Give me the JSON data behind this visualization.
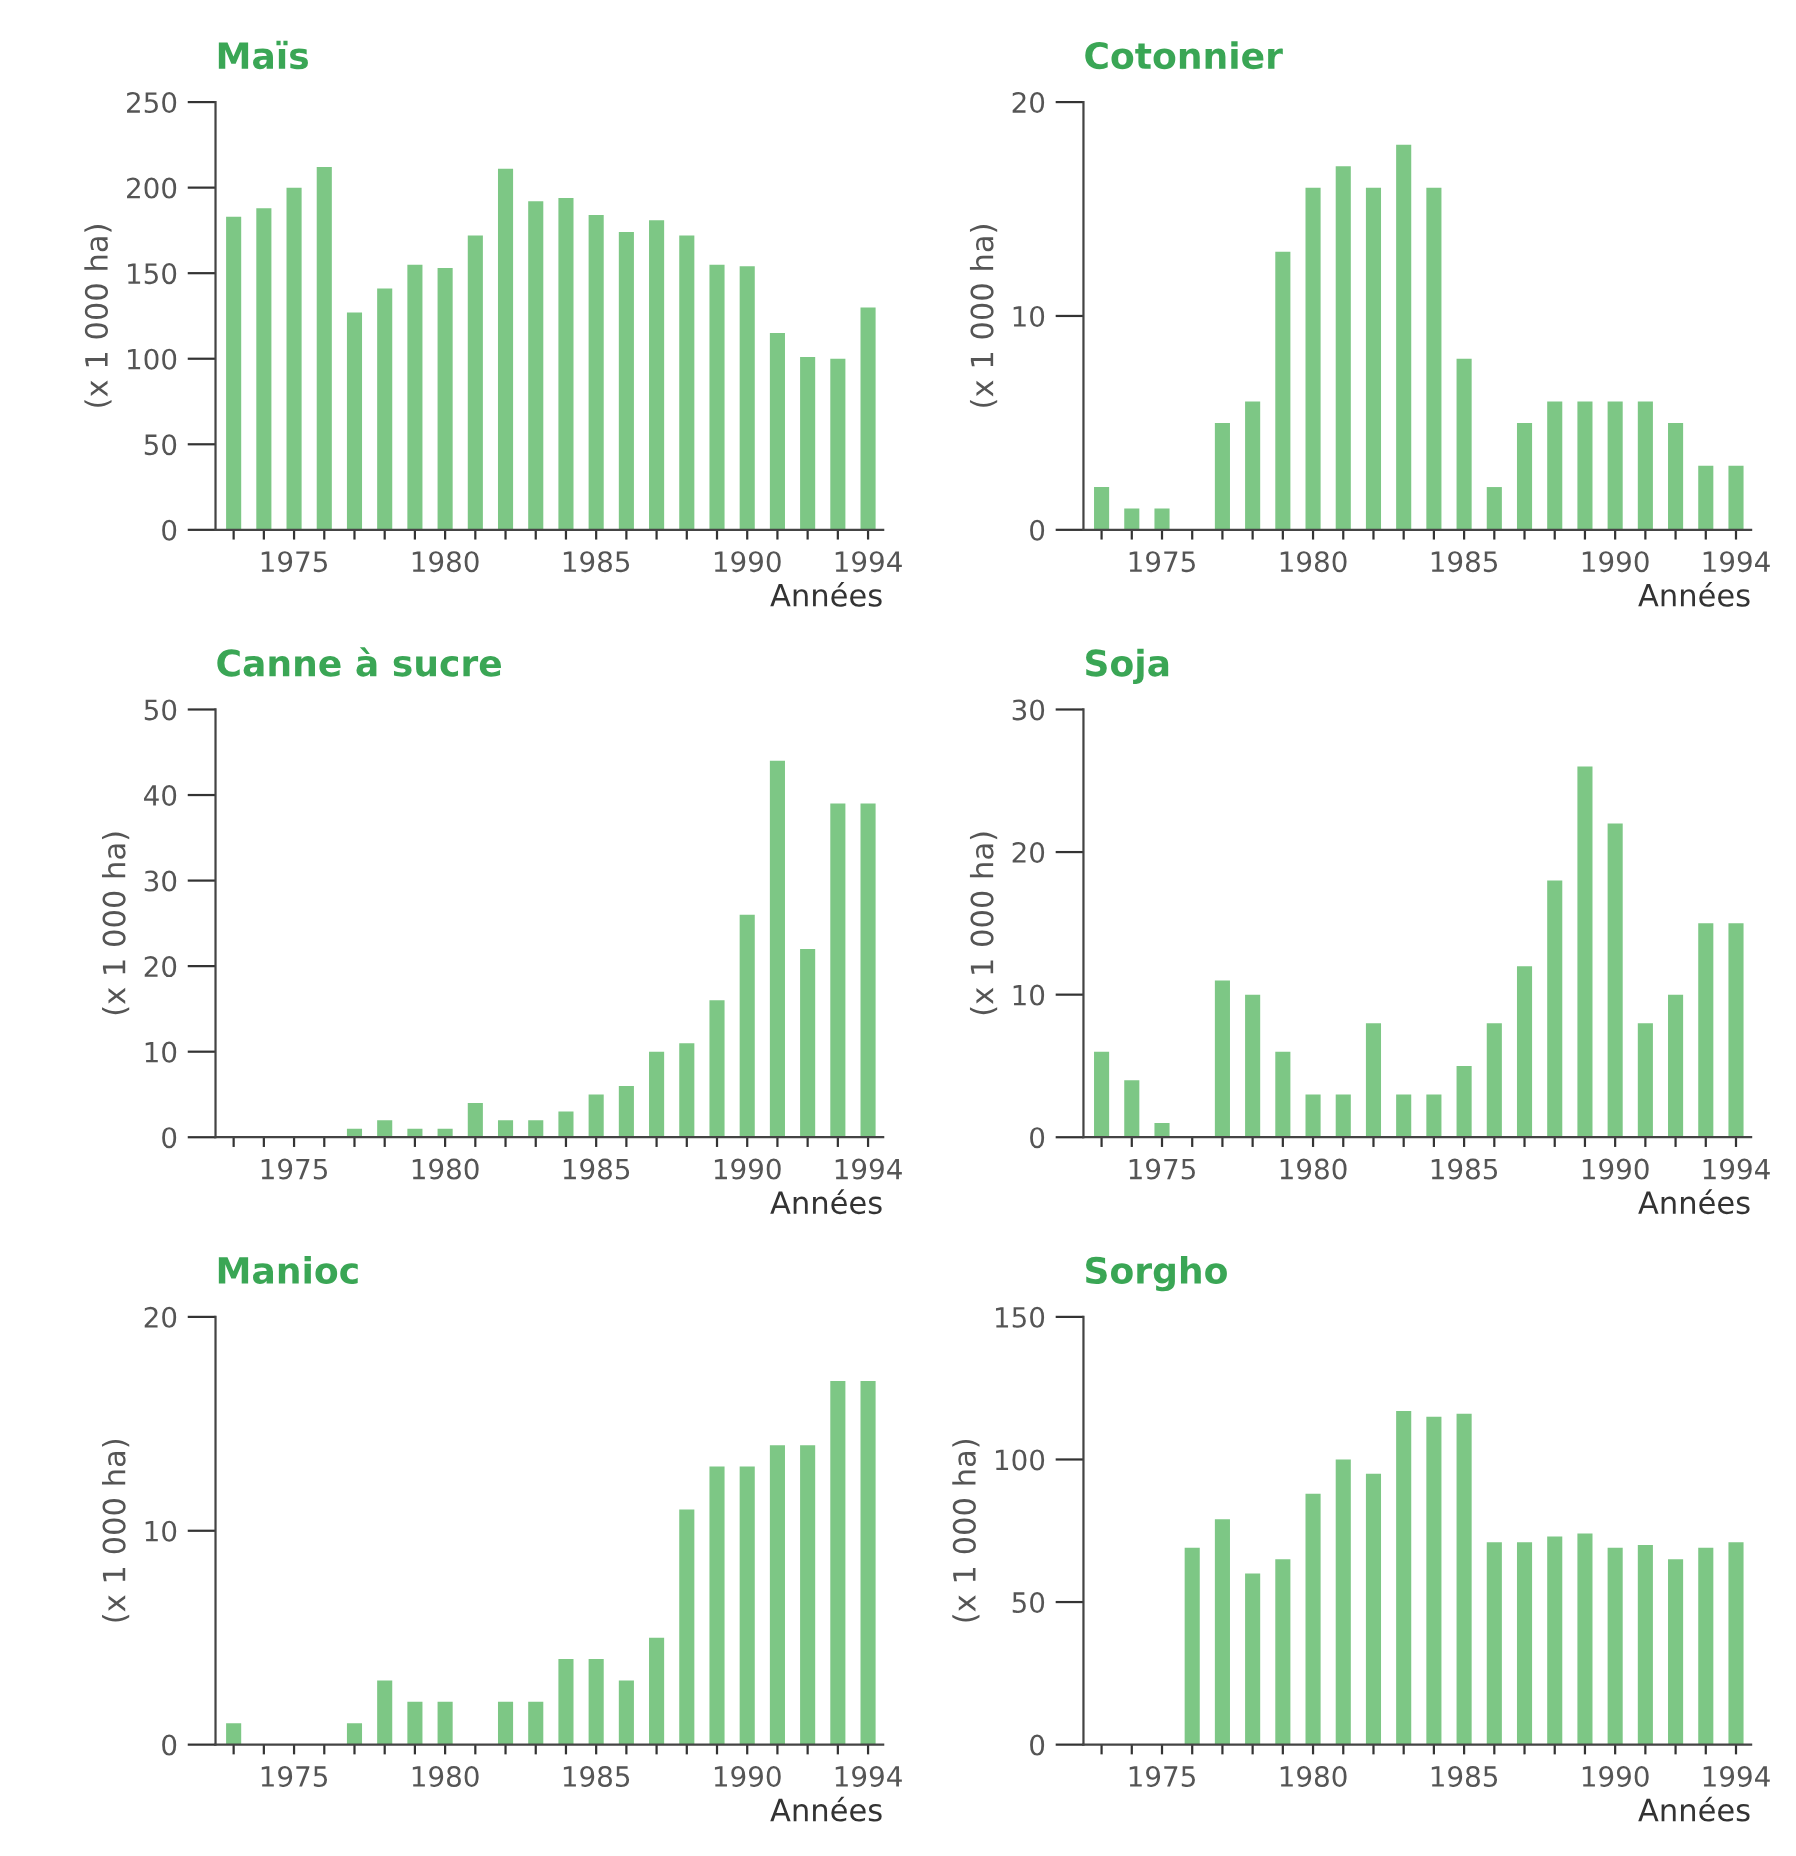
{
  "chart_data": [
    {
      "type": "bar",
      "title": "Maïs",
      "ylabel": "(x 1 000 ha)",
      "xlabel": "Années",
      "x": [
        1973,
        1974,
        1975,
        1976,
        1977,
        1978,
        1979,
        1980,
        1981,
        1982,
        1983,
        1984,
        1985,
        1986,
        1987,
        1988,
        1989,
        1990,
        1991,
        1992,
        1993,
        1994
      ],
      "color": "#7dc785",
      "values": [
        183,
        188,
        200,
        212,
        127,
        141,
        155,
        153,
        172,
        211,
        192,
        194,
        184,
        174,
        181,
        172,
        155,
        154,
        115,
        101,
        100,
        130
      ],
      "ylim": [
        0,
        250
      ],
      "yticks": [
        0,
        50,
        100,
        150,
        200,
        250
      ],
      "xlim": [
        1972.4,
        1994.5
      ],
      "xticks": [
        {
          "value": 1973,
          "label": null
        },
        {
          "value": 1974,
          "label": null
        },
        1975,
        {
          "value": 1976,
          "label": null
        },
        {
          "value": 1977,
          "label": null
        },
        {
          "value": 1978,
          "label": null
        },
        {
          "value": 1979,
          "label": null
        },
        1980,
        {
          "value": 1981,
          "label": null
        },
        {
          "value": 1982,
          "label": null
        },
        {
          "value": 1983,
          "label": null
        },
        {
          "value": 1984,
          "label": null
        },
        1985,
        {
          "value": 1986,
          "label": null
        },
        {
          "value": 1987,
          "label": null
        },
        {
          "value": 1988,
          "label": null
        },
        {
          "value": 1989,
          "label": null
        },
        1990,
        {
          "value": 1991,
          "label": null
        },
        {
          "value": 1992,
          "label": null
        },
        {
          "value": 1993,
          "label": null
        },
        1994
      ],
      "grid": false
    },
    {
      "type": "bar",
      "title": "Cotonnier",
      "ylabel": "(x 1 000 ha)",
      "xlabel": "Années",
      "x": [
        1973,
        1974,
        1975,
        1976,
        1977,
        1978,
        1979,
        1980,
        1981,
        1982,
        1983,
        1984,
        1985,
        1986,
        1987,
        1988,
        1989,
        1990,
        1991,
        1992,
        1993,
        1994
      ],
      "color": "#7dc785",
      "values": [
        2,
        1,
        1,
        0,
        5,
        6,
        13,
        16,
        17,
        16,
        18,
        16,
        8,
        2,
        5,
        6,
        6,
        6,
        6,
        5,
        3,
        3
      ],
      "ylim": [
        0,
        20
      ],
      "yticks": [
        0,
        10,
        20
      ],
      "xlim": [
        1972.4,
        1994.5
      ],
      "xticks": [
        {
          "value": 1973,
          "label": null
        },
        {
          "value": 1974,
          "label": null
        },
        1975,
        {
          "value": 1976,
          "label": null
        },
        {
          "value": 1977,
          "label": null
        },
        {
          "value": 1978,
          "label": null
        },
        {
          "value": 1979,
          "label": null
        },
        1980,
        {
          "value": 1981,
          "label": null
        },
        {
          "value": 1982,
          "label": null
        },
        {
          "value": 1983,
          "label": null
        },
        {
          "value": 1984,
          "label": null
        },
        1985,
        {
          "value": 1986,
          "label": null
        },
        {
          "value": 1987,
          "label": null
        },
        {
          "value": 1988,
          "label": null
        },
        {
          "value": 1989,
          "label": null
        },
        1990,
        {
          "value": 1991,
          "label": null
        },
        {
          "value": 1992,
          "label": null
        },
        {
          "value": 1993,
          "label": null
        },
        1994
      ],
      "grid": false
    },
    {
      "type": "bar",
      "title": "Canne à sucre",
      "ylabel": "(x 1 000 ha)",
      "xlabel": "Années",
      "x": [
        1973,
        1974,
        1975,
        1976,
        1977,
        1978,
        1979,
        1980,
        1981,
        1982,
        1983,
        1984,
        1985,
        1986,
        1987,
        1988,
        1989,
        1990,
        1991,
        1992,
        1993,
        1994
      ],
      "color": "#7dc785",
      "values": [
        0,
        0,
        0,
        0,
        1,
        2,
        1,
        1,
        4,
        2,
        2,
        3,
        5,
        6,
        10,
        11,
        16,
        26,
        44,
        22,
        39,
        39
      ],
      "ylim": [
        0,
        50
      ],
      "yticks": [
        0,
        10,
        20,
        30,
        40,
        50
      ],
      "xlim": [
        1972.4,
        1994.5
      ],
      "xticks": [
        {
          "value": 1973,
          "label": null
        },
        {
          "value": 1974,
          "label": null
        },
        1975,
        {
          "value": 1976,
          "label": null
        },
        {
          "value": 1977,
          "label": null
        },
        {
          "value": 1978,
          "label": null
        },
        {
          "value": 1979,
          "label": null
        },
        1980,
        {
          "value": 1981,
          "label": null
        },
        {
          "value": 1982,
          "label": null
        },
        {
          "value": 1983,
          "label": null
        },
        {
          "value": 1984,
          "label": null
        },
        1985,
        {
          "value": 1986,
          "label": null
        },
        {
          "value": 1987,
          "label": null
        },
        {
          "value": 1988,
          "label": null
        },
        {
          "value": 1989,
          "label": null
        },
        1990,
        {
          "value": 1991,
          "label": null
        },
        {
          "value": 1992,
          "label": null
        },
        {
          "value": 1993,
          "label": null
        },
        1994
      ],
      "grid": false
    },
    {
      "type": "bar",
      "title": "Soja",
      "ylabel": "(x 1 000 ha)",
      "xlabel": "Années",
      "x": [
        1973,
        1974,
        1975,
        1976,
        1977,
        1978,
        1979,
        1980,
        1981,
        1982,
        1983,
        1984,
        1985,
        1986,
        1987,
        1988,
        1989,
        1990,
        1991,
        1992,
        1993,
        1994
      ],
      "color": "#7dc785",
      "values": [
        6,
        4,
        1,
        0,
        11,
        10,
        6,
        3,
        3,
        8,
        3,
        3,
        5,
        8,
        12,
        18,
        26,
        22,
        8,
        10,
        15,
        15
      ],
      "ylim": [
        0,
        30
      ],
      "yticks": [
        0,
        10,
        20,
        30
      ],
      "xlim": [
        1972.4,
        1994.5
      ],
      "xticks": [
        {
          "value": 1973,
          "label": null
        },
        {
          "value": 1974,
          "label": null
        },
        1975,
        {
          "value": 1976,
          "label": null
        },
        {
          "value": 1977,
          "label": null
        },
        {
          "value": 1978,
          "label": null
        },
        {
          "value": 1979,
          "label": null
        },
        1980,
        {
          "value": 1981,
          "label": null
        },
        {
          "value": 1982,
          "label": null
        },
        {
          "value": 1983,
          "label": null
        },
        {
          "value": 1984,
          "label": null
        },
        1985,
        {
          "value": 1986,
          "label": null
        },
        {
          "value": 1987,
          "label": null
        },
        {
          "value": 1988,
          "label": null
        },
        {
          "value": 1989,
          "label": null
        },
        1990,
        {
          "value": 1991,
          "label": null
        },
        {
          "value": 1992,
          "label": null
        },
        {
          "value": 1993,
          "label": null
        },
        1994
      ],
      "grid": false
    },
    {
      "type": "bar",
      "title": "Manioc",
      "ylabel": "(x 1 000 ha)",
      "xlabel": "Années",
      "x": [
        1973,
        1974,
        1975,
        1976,
        1977,
        1978,
        1979,
        1980,
        1981,
        1982,
        1983,
        1984,
        1985,
        1986,
        1987,
        1988,
        1989,
        1990,
        1991,
        1992,
        1993,
        1994
      ],
      "color": "#7dc785",
      "values": [
        1,
        0,
        0,
        0,
        1,
        3,
        2,
        2,
        0,
        2,
        2,
        4,
        4,
        3,
        5,
        11,
        13,
        13,
        14,
        14,
        17,
        17
      ],
      "ylim": [
        0,
        20
      ],
      "yticks": [
        0,
        10,
        20
      ],
      "xlim": [
        1972.4,
        1994.5
      ],
      "xticks": [
        {
          "value": 1973,
          "label": null
        },
        {
          "value": 1974,
          "label": null
        },
        1975,
        {
          "value": 1976,
          "label": null
        },
        {
          "value": 1977,
          "label": null
        },
        {
          "value": 1978,
          "label": null
        },
        {
          "value": 1979,
          "label": null
        },
        1980,
        {
          "value": 1981,
          "label": null
        },
        {
          "value": 1982,
          "label": null
        },
        {
          "value": 1983,
          "label": null
        },
        {
          "value": 1984,
          "label": null
        },
        1985,
        {
          "value": 1986,
          "label": null
        },
        {
          "value": 1987,
          "label": null
        },
        {
          "value": 1988,
          "label": null
        },
        {
          "value": 1989,
          "label": null
        },
        1990,
        {
          "value": 1991,
          "label": null
        },
        {
          "value": 1992,
          "label": null
        },
        {
          "value": 1993,
          "label": null
        },
        1994
      ],
      "grid": false
    },
    {
      "type": "bar",
      "title": "Sorgho",
      "ylabel": "(x 1 000 ha)",
      "xlabel": "Années",
      "x": [
        1973,
        1974,
        1975,
        1976,
        1977,
        1978,
        1979,
        1980,
        1981,
        1982,
        1983,
        1984,
        1985,
        1986,
        1987,
        1988,
        1989,
        1990,
        1991,
        1992,
        1993,
        1994
      ],
      "color": "#7dc785",
      "values": [
        0,
        0,
        0,
        69,
        79,
        60,
        65,
        88,
        100,
        95,
        117,
        115,
        116,
        71,
        71,
        73,
        74,
        69,
        70,
        65,
        69,
        71
      ],
      "ylim": [
        0,
        150
      ],
      "yticks": [
        0,
        50,
        100,
        150
      ],
      "xlim": [
        1972.4,
        1994.5
      ],
      "xticks": [
        {
          "value": 1973,
          "label": null
        },
        {
          "value": 1974,
          "label": null
        },
        1975,
        {
          "value": 1976,
          "label": null
        },
        {
          "value": 1977,
          "label": null
        },
        {
          "value": 1978,
          "label": null
        },
        {
          "value": 1979,
          "label": null
        },
        1980,
        {
          "value": 1981,
          "label": null
        },
        {
          "value": 1982,
          "label": null
        },
        {
          "value": 1983,
          "label": null
        },
        {
          "value": 1984,
          "label": null
        },
        1985,
        {
          "value": 1986,
          "label": null
        },
        {
          "value": 1987,
          "label": null
        },
        {
          "value": 1988,
          "label": null
        },
        {
          "value": 1989,
          "label": null
        },
        1990,
        {
          "value": 1991,
          "label": null
        },
        {
          "value": 1992,
          "label": null
        },
        {
          "value": 1993,
          "label": null
        },
        1994
      ],
      "grid": false
    }
  ]
}
